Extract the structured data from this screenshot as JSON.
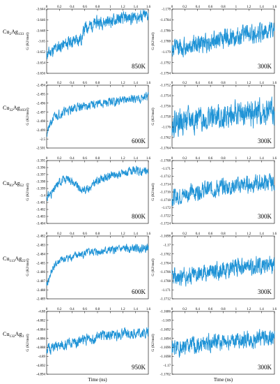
{
  "figure": {
    "xlabel": "Time (ns)",
    "line_color": "#1f93d6"
  },
  "rows": [
    {
      "composition": {
        "base": "Cu",
        "n1": "2",
        "mid": "Ag",
        "n2": "133"
      }
    },
    {
      "composition": {
        "base": "Cu",
        "n1": "32",
        "mid": "Ag",
        "n2": "103"
      }
    },
    {
      "composition": {
        "base": "Cu",
        "n1": "83",
        "mid": "Ag",
        "n2": "52"
      }
    },
    {
      "composition": {
        "base": "Cu",
        "n1": "113",
        "mid": "Ag",
        "n2": "22"
      }
    },
    {
      "composition": {
        "base": "Cu",
        "n1": "132",
        "mid": "Ag",
        "n2": "3"
      }
    }
  ],
  "chart_data": [
    {
      "type": "line",
      "row": 0,
      "col": 0,
      "temperature": "850K",
      "ylabel": "G (KJ/mol)",
      "xlim": [
        0,
        1.6
      ],
      "xticks": [
        "0",
        "0.2",
        "0.4",
        "0.6",
        "0.8",
        "1",
        "1.2",
        "1.4",
        "1.6"
      ],
      "ylim": [
        -3.656,
        -3.644
      ],
      "yticks": [
        "-3.644",
        "-3.646",
        "-3.648",
        "-3.65",
        "-3.652",
        "-3.654",
        "-3.656"
      ],
      "trend": {
        "x": [
          0,
          0.2,
          0.4,
          0.55,
          0.6,
          0.8,
          1.0,
          1.2,
          1.4,
          1.6
        ],
        "y": [
          -3.6525,
          -3.651,
          -3.65,
          -3.6495,
          -3.6475,
          -3.6465,
          -3.6462,
          -3.6458,
          -3.6455,
          -3.6452
        ]
      },
      "noise": 0.0012,
      "seed": 11
    },
    {
      "type": "line",
      "row": 0,
      "col": 1,
      "temperature": "300K",
      "ylabel": "G (KJ/mol)",
      "xlim": [
        0,
        1.6
      ],
      "xticks": [
        "0",
        "0.2",
        "0.4",
        "0.6",
        "0.8",
        "1",
        "1.2",
        "1.4",
        "1.6"
      ],
      "ylim": [
        -1.1794,
        -1.1782
      ],
      "yticks": [
        "-1.178",
        "-1.1784",
        "-1.1786",
        "-1.1788",
        "-1.179",
        "-1.1792",
        "-1.1794"
      ],
      "trend": {
        "x": [
          0,
          0.4,
          0.8,
          1.2,
          1.6
        ],
        "y": [
          -1.17895,
          -1.17885,
          -1.17875,
          -1.17868,
          -1.17862
        ]
      },
      "noise": 0.00018,
      "seed": 12
    },
    {
      "type": "line",
      "row": 1,
      "col": 0,
      "temperature": "600K",
      "ylabel": "G (KJ/mol)",
      "xlim": [
        0,
        1.6
      ],
      "xticks": [
        "0",
        "0.2",
        "0.4",
        "0.6",
        "0.8",
        "1",
        "1.2",
        "1.4",
        "1.6"
      ],
      "ylim": [
        -2.501,
        -2.494
      ],
      "yticks": [
        "-2.494",
        "-2.495",
        "-2.496",
        "-2.497",
        "-2.498",
        "-2.499",
        "-2.5",
        "-2.501"
      ],
      "trend": {
        "x": [
          0,
          0.05,
          0.1,
          0.2,
          0.4,
          0.8,
          1.2,
          1.6
        ],
        "y": [
          -2.4995,
          -2.4985,
          -2.4977,
          -2.4972,
          -2.4966,
          -2.4961,
          -2.4957,
          -2.4953
        ]
      },
      "noise": 0.0005,
      "seed": 21
    },
    {
      "type": "line",
      "row": 1,
      "col": 1,
      "temperature": "300K",
      "ylabel": "G (KJ/mol)",
      "xlim": [
        0,
        1.6
      ],
      "xticks": [
        "0",
        "0.2",
        "0.4",
        "0.6",
        "0.8",
        "1",
        "1.2",
        "1.4",
        "1.6"
      ],
      "ylim": [
        -1.1764,
        -1.1752
      ],
      "yticks": [
        "-1.1752",
        "-1.1754",
        "-1.1756",
        "-1.1758",
        "-1.176",
        "-1.1762",
        "-1.1764"
      ],
      "trend": {
        "x": [
          0,
          0.8,
          1.6
        ],
        "y": [
          -1.1759,
          -1.1758,
          -1.1757
        ]
      },
      "noise": 0.00025,
      "seed": 22
    },
    {
      "type": "line",
      "row": 2,
      "col": 0,
      "temperature": "800K",
      "ylabel": "G (KJ/mol)",
      "xlim": [
        0,
        1.6
      ],
      "xticks": [
        "0",
        "0.2",
        "0.4",
        "0.6",
        "0.8",
        "1",
        "1.2",
        "1.4",
        "1.6"
      ],
      "ylim": [
        -3.404,
        -3.395
      ],
      "yticks": [
        "-3.395",
        "-3.396",
        "-3.397",
        "-3.398",
        "-3.399",
        "-3.4",
        "-3.401",
        "-3.402",
        "-3.403",
        "-3.404"
      ],
      "trend": {
        "x": [
          0,
          0.1,
          0.2,
          0.35,
          0.45,
          0.55,
          0.7,
          0.8,
          1.0,
          1.2,
          1.4,
          1.6
        ],
        "y": [
          -3.4002,
          -3.3995,
          -3.398,
          -3.3975,
          -3.3985,
          -3.3992,
          -3.3988,
          -3.3978,
          -3.3972,
          -3.3968,
          -3.3965,
          -3.3966
        ]
      },
      "noise": 0.0006,
      "seed": 31
    },
    {
      "type": "line",
      "row": 2,
      "col": 1,
      "temperature": "300K",
      "ylabel": "G (KJ/mol)",
      "xlim": [
        0,
        1.6
      ],
      "xticks": [
        "0",
        "0.2",
        "0.4",
        "0.6",
        "0.8",
        "1",
        "1.2",
        "1.4",
        "1.6"
      ],
      "ylim": [
        -1.1724,
        -1.1708
      ],
      "yticks": [
        "-1.1708",
        "-1.171",
        "-1.1712",
        "-1.1714",
        "-1.1716",
        "-1.1718",
        "-1.172",
        "-1.1722",
        "-1.1724"
      ],
      "trend": {
        "x": [
          0,
          0.3,
          0.8,
          1.2,
          1.6
        ],
        "y": [
          -1.17175,
          -1.1716,
          -1.17148,
          -1.1714,
          -1.17135
        ]
      },
      "noise": 0.00022,
      "seed": 32
    },
    {
      "type": "line",
      "row": 3,
      "col": 0,
      "temperature": "600K",
      "ylabel": "G (KJ/mol)",
      "xlim": [
        0,
        1.6
      ],
      "xticks": [
        "0",
        "0.2",
        "0.4",
        "0.6",
        "0.8",
        "1",
        "1.2",
        "1.4",
        "1.6"
      ],
      "ylim": [
        -2.489,
        -2.482
      ],
      "yticks": [
        "-2.482",
        "-2.483",
        "-2.484",
        "-2.485",
        "-2.486",
        "-2.487",
        "-2.488",
        "-2.489"
      ],
      "trend": {
        "x": [
          0,
          0.05,
          0.1,
          0.2,
          0.4,
          0.7,
          1.0,
          1.3,
          1.6
        ],
        "y": [
          -2.4875,
          -2.4865,
          -2.4855,
          -2.4848,
          -2.4843,
          -2.4838,
          -2.4836,
          -2.4834,
          -2.4833
        ]
      },
      "noise": 0.00045,
      "seed": 41
    },
    {
      "type": "line",
      "row": 3,
      "col": 1,
      "temperature": "300K",
      "ylabel": "G (KJ/mol)",
      "xlim": [
        0,
        1.6
      ],
      "xticks": [
        "0",
        "0.2",
        "0.4",
        "0.6",
        "0.8",
        "1",
        "1.2",
        "1.4",
        "1.6"
      ],
      "ylim": [
        -1.1712,
        -1.1698
      ],
      "yticks": [
        "-1.1698",
        "-1.17",
        "-1.1702",
        "-1.1704",
        "-1.1706",
        "-1.1708",
        "-1.171",
        "-1.1712"
      ],
      "trend": {
        "x": [
          0,
          0.4,
          0.8,
          1.2,
          1.6
        ],
        "y": [
          -1.17075,
          -1.17065,
          -1.17055,
          -1.17048,
          -1.17043
        ]
      },
      "noise": 0.0002,
      "seed": 42
    },
    {
      "type": "line",
      "row": 4,
      "col": 0,
      "temperature": "950K",
      "ylabel": "G (KJ/mol)",
      "xlim": [
        0,
        1.6
      ],
      "xticks": [
        "0",
        "0.2",
        "0.4",
        "0.6",
        "0.8",
        "1",
        "1.2",
        "1.4",
        "1.6"
      ],
      "ylim": [
        -4.894,
        -4.88
      ],
      "yticks": [
        "-4.88",
        "-4.882",
        "-4.884",
        "-4.886",
        "-4.888",
        "-4.89",
        "-4.892",
        "-4.894"
      ],
      "trend": {
        "x": [
          0,
          0.3,
          0.6,
          0.9,
          1.2,
          1.6
        ],
        "y": [
          -4.8885,
          -4.8875,
          -4.8862,
          -4.8855,
          -4.885,
          -4.8846
        ]
      },
      "noise": 0.0012,
      "seed": 51
    },
    {
      "type": "line",
      "row": 4,
      "col": 1,
      "temperature": "300K",
      "ylabel": "G (KJ/mol)",
      "xlim": [
        0,
        1.6
      ],
      "xticks": [
        "0",
        "0.2",
        "0.4",
        "0.6",
        "0.8",
        "1",
        "1.2",
        "1.4",
        "1.6"
      ],
      "ylim": [
        -1.1702,
        -1.1686
      ],
      "yticks": [
        "-1.1686",
        "-1.169",
        "-1.1692",
        "-1.1694",
        "-1.1696",
        "-1.1698",
        "-1.17",
        "-1.1702"
      ],
      "trend": {
        "x": [
          0,
          0.4,
          0.8,
          1.2,
          1.6
        ],
        "y": [
          -1.16955,
          -1.16945,
          -1.16938,
          -1.16932,
          -1.16928
        ]
      },
      "noise": 0.00022,
      "seed": 52
    }
  ]
}
